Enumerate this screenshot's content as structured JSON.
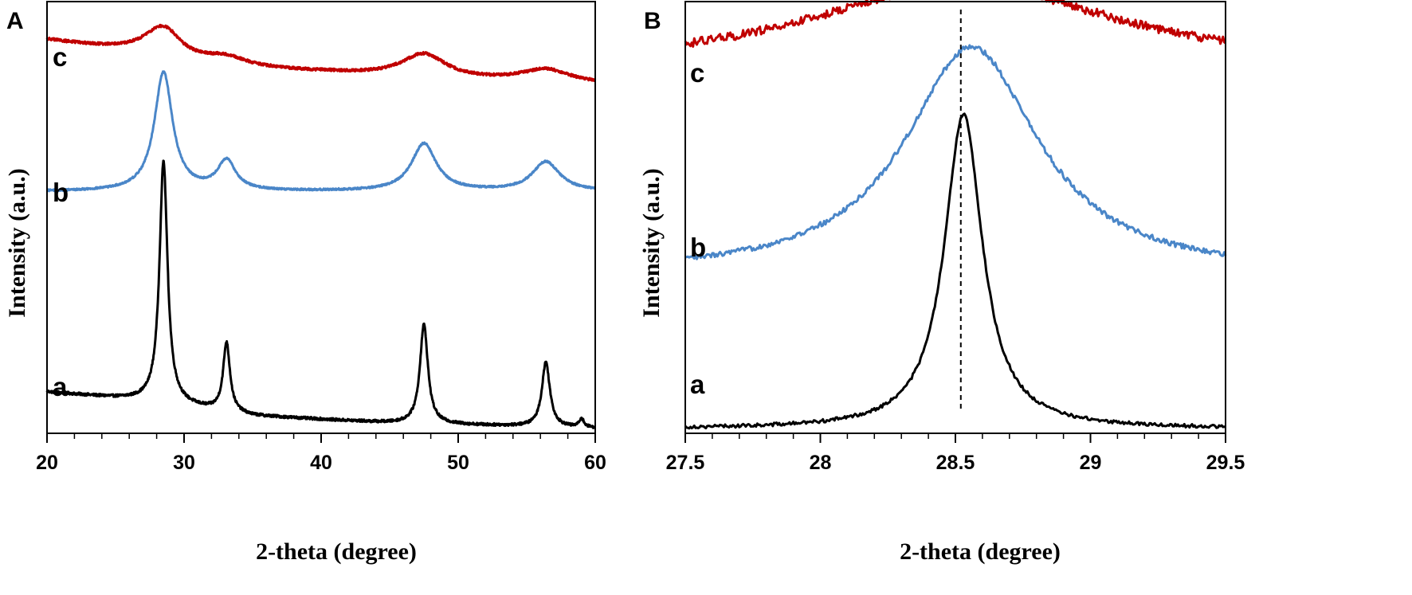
{
  "figure": {
    "panels": [
      {
        "panel_label": "A"
      },
      {
        "panel_label": "B"
      }
    ]
  },
  "chart_data": [
    {
      "type": "line",
      "panel": "A",
      "xlabel": "2-theta (degree)",
      "ylabel": "Intensity (a.u.)",
      "xlim": [
        20,
        60
      ],
      "x_ticks": [
        "20",
        "30",
        "40",
        "50",
        "60"
      ],
      "x_minor_step": 2,
      "y_ticks_shown": false,
      "grid": false,
      "series": [
        {
          "name": "a",
          "color": "#000000",
          "peaks": [
            [
              28.5,
              0.56,
              0.35
            ],
            [
              33.1,
              0.16,
              0.3
            ],
            [
              47.5,
              0.23,
              0.35
            ],
            [
              56.4,
              0.15,
              0.35
            ],
            [
              59.0,
              0.02,
              0.2
            ]
          ],
          "baseline": [
            [
              20,
              0.096
            ],
            [
              28,
              0.073
            ],
            [
              35,
              0.04
            ],
            [
              45,
              0.024
            ],
            [
              60,
              0.012
            ]
          ],
          "noise": 0.003
        },
        {
          "name": "b",
          "color": "#4a86c8",
          "peaks": [
            [
              28.5,
              0.275,
              0.8
            ],
            [
              33.1,
              0.068,
              0.8
            ],
            [
              47.5,
              0.11,
              1.1
            ],
            [
              56.4,
              0.068,
              1.2
            ]
          ],
          "baseline": [
            [
              20,
              0.56
            ],
            [
              60,
              0.56
            ]
          ],
          "noise": 0.002
        },
        {
          "name": "c",
          "color": "#c00000",
          "peaks": [
            [
              28.5,
              0.08,
              1.8
            ],
            [
              33.0,
              0.022,
              2.0
            ],
            [
              47.5,
              0.055,
              2.0
            ],
            [
              56.4,
              0.03,
              2.2
            ]
          ],
          "baseline": [
            [
              20,
              0.91
            ],
            [
              25,
              0.885
            ],
            [
              30,
              0.848
            ],
            [
              40,
              0.835
            ],
            [
              50,
              0.818
            ],
            [
              60,
              0.808
            ]
          ],
          "noise": 0.003
        }
      ]
    },
    {
      "type": "line",
      "panel": "B",
      "xlabel": "2-theta (degree)",
      "ylabel": "Intensity (a.u.)",
      "xlim": [
        27.5,
        29.5
      ],
      "x_ticks": [
        "27.5",
        "28",
        "28.5",
        "29",
        "29.5"
      ],
      "x_minor_step": 0.1,
      "y_ticks_shown": false,
      "grid": false,
      "reference_line_x": 28.52,
      "series": [
        {
          "name": "a",
          "color": "#000000",
          "peak_center": 28.53,
          "peak_height": 0.73,
          "peak_width": 0.085,
          "base": 0.01,
          "noise": 0.004
        },
        {
          "name": "b",
          "color": "#4a86c8",
          "peak_center": 28.56,
          "peak_height": 0.53,
          "peak_width": 0.3,
          "base": 0.365,
          "noise": 0.006
        },
        {
          "name": "c",
          "color": "#c00000",
          "peak_center": 28.53,
          "peak_height": 0.2,
          "peak_width": 0.7,
          "base": 0.84,
          "noise": 0.01
        }
      ]
    }
  ]
}
